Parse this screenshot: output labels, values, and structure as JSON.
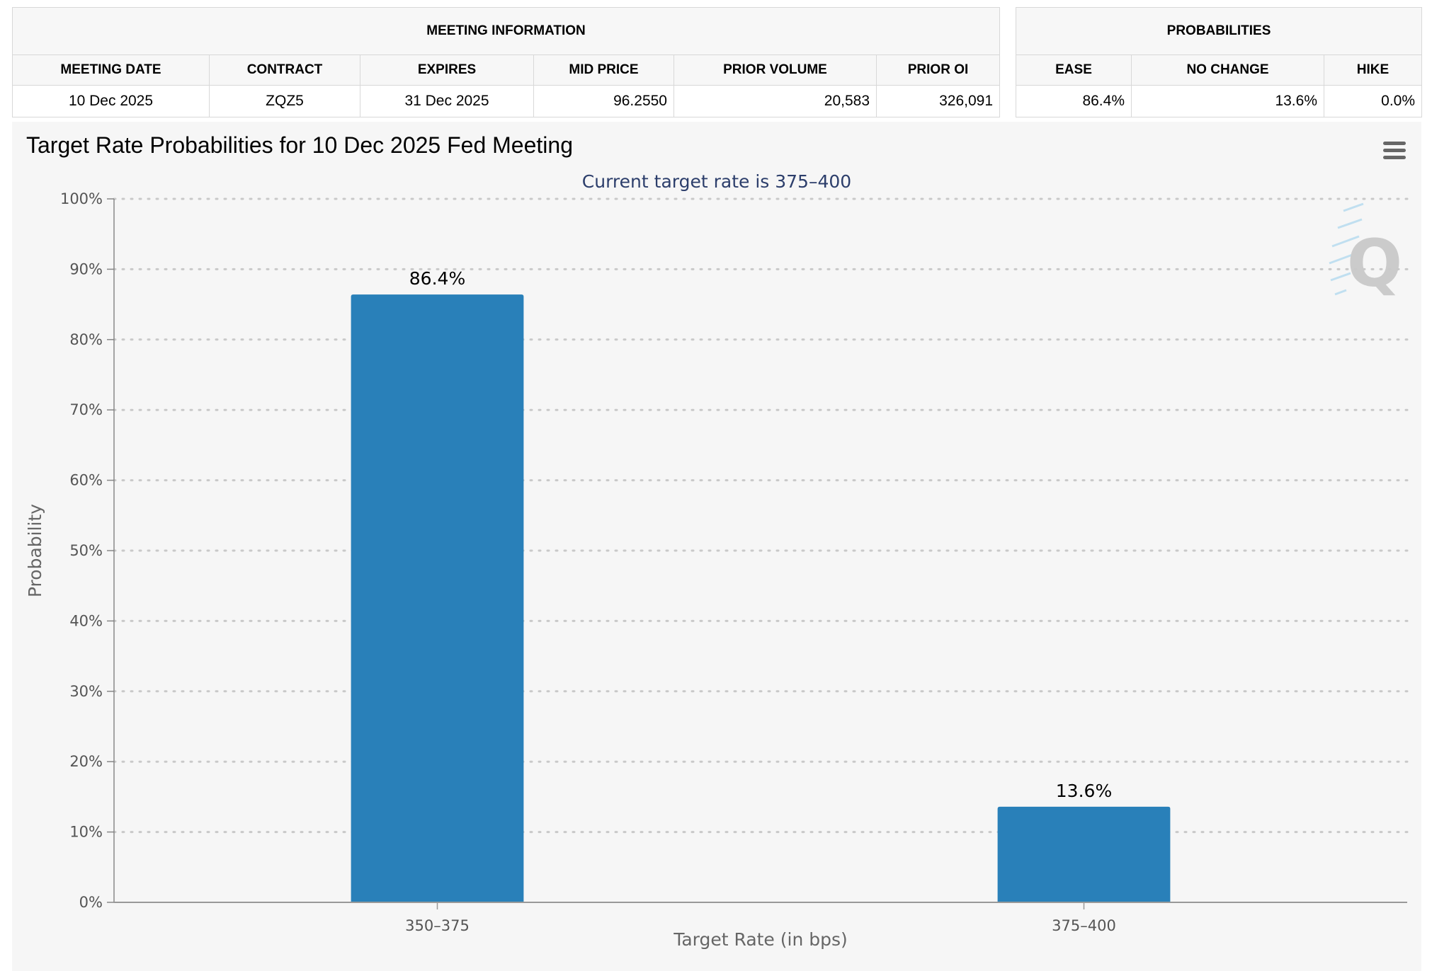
{
  "meeting_info": {
    "heading": "MEETING INFORMATION",
    "columns": [
      "MEETING DATE",
      "CONTRACT",
      "EXPIRES",
      "MID PRICE",
      "PRIOR VOLUME",
      "PRIOR OI"
    ],
    "row": [
      "10 Dec 2025",
      "ZQZ5",
      "31 Dec 2025",
      "96.2550",
      "20,583",
      "326,091"
    ]
  },
  "probabilities": {
    "heading": "PROBABILITIES",
    "columns": [
      "EASE",
      "NO CHANGE",
      "HIKE"
    ],
    "row": [
      "86.4%",
      "13.6%",
      "0.0%"
    ]
  },
  "menu_icon": "hamburger-menu-icon",
  "watermark_icon": "q-logo-icon",
  "chart_data": {
    "type": "bar",
    "title": "Target Rate Probabilities for 10 Dec 2025 Fed Meeting",
    "subtitle": "Current target rate is 375–400",
    "xlabel": "Target Rate (in bps)",
    "ylabel": "Probability",
    "categories": [
      "350–375",
      "375–400"
    ],
    "values": [
      86.4,
      13.6
    ],
    "data_labels": [
      "86.4%",
      "13.6%"
    ],
    "ylim": [
      0,
      100
    ],
    "yticks": [
      "0%",
      "10%",
      "20%",
      "30%",
      "40%",
      "50%",
      "60%",
      "70%",
      "80%",
      "90%",
      "100%"
    ],
    "grid": true,
    "bar_color": "#2980b9"
  }
}
